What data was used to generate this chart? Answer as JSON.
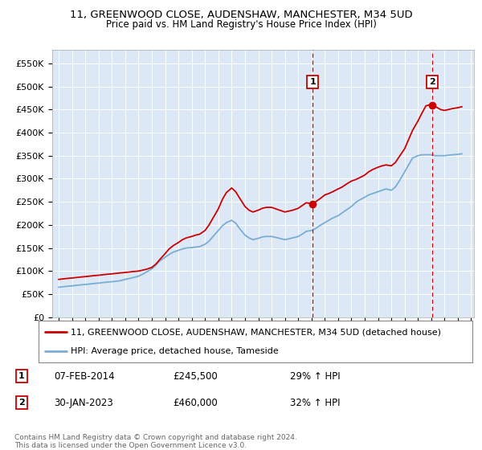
{
  "title": "11, GREENWOOD CLOSE, AUDENSHAW, MANCHESTER, M34 5UD",
  "subtitle": "Price paid vs. HM Land Registry's House Price Index (HPI)",
  "legend_label_red": "11, GREENWOOD CLOSE, AUDENSHAW, MANCHESTER, M34 5UD (detached house)",
  "legend_label_blue": "HPI: Average price, detached house, Tameside",
  "annotation1_date": "07-FEB-2014",
  "annotation1_price": "£245,500",
  "annotation1_hpi": "29% ↑ HPI",
  "annotation2_date": "30-JAN-2023",
  "annotation2_price": "£460,000",
  "annotation2_hpi": "32% ↑ HPI",
  "footer": "Contains HM Land Registry data © Crown copyright and database right 2024.\nThis data is licensed under the Open Government Licence v3.0.",
  "red_color": "#cc0000",
  "blue_color": "#7aadd4",
  "bg_color": "#ffffff",
  "plot_bg_color": "#dce8f5",
  "grid_color": "#ffffff",
  "vline_color": "#cc0000",
  "shade_color": "#dce8f5",
  "ylim": [
    0,
    580000
  ],
  "yticks": [
    0,
    50000,
    100000,
    150000,
    200000,
    250000,
    300000,
    350000,
    400000,
    450000,
    500000,
    550000
  ],
  "ytick_labels": [
    "£0",
    "£50K",
    "£100K",
    "£150K",
    "£200K",
    "£250K",
    "£300K",
    "£350K",
    "£400K",
    "£450K",
    "£500K",
    "£550K"
  ],
  "xlim_start": 1994.5,
  "xlim_end": 2026.2,
  "sale1_x": 2014.1,
  "sale1_y": 245500,
  "sale2_x": 2023.08,
  "sale2_y": 460000,
  "shade_start": 2014.1,
  "shade_end": 2026.2,
  "red_x": [
    1995.0,
    1995.3,
    1995.6,
    1996.0,
    1996.3,
    1996.6,
    1997.0,
    1997.3,
    1997.6,
    1998.0,
    1998.3,
    1998.6,
    1999.0,
    1999.3,
    1999.6,
    2000.0,
    2000.3,
    2000.6,
    2001.0,
    2001.3,
    2001.6,
    2002.0,
    2002.3,
    2002.6,
    2003.0,
    2003.3,
    2003.6,
    2004.0,
    2004.3,
    2004.6,
    2005.0,
    2005.3,
    2005.6,
    2006.0,
    2006.3,
    2006.6,
    2007.0,
    2007.3,
    2007.6,
    2008.0,
    2008.3,
    2008.6,
    2009.0,
    2009.3,
    2009.6,
    2010.0,
    2010.3,
    2010.6,
    2011.0,
    2011.3,
    2011.6,
    2012.0,
    2012.3,
    2012.6,
    2013.0,
    2013.3,
    2013.6,
    2014.0,
    2014.1,
    2014.4,
    2014.7,
    2015.0,
    2015.3,
    2015.6,
    2016.0,
    2016.3,
    2016.6,
    2017.0,
    2017.3,
    2017.6,
    2018.0,
    2018.3,
    2018.6,
    2019.0,
    2019.3,
    2019.6,
    2020.0,
    2020.3,
    2020.6,
    2021.0,
    2021.3,
    2021.6,
    2022.0,
    2022.3,
    2022.6,
    2023.0,
    2023.08,
    2023.4,
    2023.7,
    2024.0,
    2024.3,
    2024.6,
    2025.0,
    2025.3
  ],
  "red_y": [
    82000,
    83000,
    84000,
    85000,
    86000,
    87000,
    88000,
    89000,
    90000,
    91000,
    92000,
    93000,
    94000,
    95000,
    96000,
    97000,
    98000,
    99000,
    100000,
    102000,
    104000,
    108000,
    115000,
    125000,
    138000,
    148000,
    155000,
    162000,
    168000,
    172000,
    175000,
    178000,
    180000,
    188000,
    200000,
    215000,
    235000,
    255000,
    270000,
    280000,
    272000,
    258000,
    240000,
    232000,
    228000,
    232000,
    236000,
    238000,
    238000,
    235000,
    232000,
    228000,
    230000,
    232000,
    236000,
    242000,
    248000,
    246000,
    245500,
    252000,
    258000,
    265000,
    268000,
    272000,
    278000,
    282000,
    288000,
    295000,
    298000,
    302000,
    308000,
    315000,
    320000,
    325000,
    328000,
    330000,
    328000,
    335000,
    348000,
    365000,
    385000,
    405000,
    425000,
    442000,
    458000,
    461000,
    460000,
    455000,
    450000,
    448000,
    450000,
    452000,
    454000,
    456000
  ],
  "blue_x": [
    1995.0,
    1995.3,
    1995.6,
    1996.0,
    1996.3,
    1996.6,
    1997.0,
    1997.3,
    1997.6,
    1998.0,
    1998.3,
    1998.6,
    1999.0,
    1999.3,
    1999.6,
    2000.0,
    2000.3,
    2000.6,
    2001.0,
    2001.3,
    2001.6,
    2002.0,
    2002.3,
    2002.6,
    2003.0,
    2003.3,
    2003.6,
    2004.0,
    2004.3,
    2004.6,
    2005.0,
    2005.3,
    2005.6,
    2006.0,
    2006.3,
    2006.6,
    2007.0,
    2007.3,
    2007.6,
    2008.0,
    2008.3,
    2008.6,
    2009.0,
    2009.3,
    2009.6,
    2010.0,
    2010.3,
    2010.6,
    2011.0,
    2011.3,
    2011.6,
    2012.0,
    2012.3,
    2012.6,
    2013.0,
    2013.3,
    2013.6,
    2014.0,
    2014.3,
    2014.6,
    2015.0,
    2015.3,
    2015.6,
    2016.0,
    2016.3,
    2016.6,
    2017.0,
    2017.3,
    2017.6,
    2018.0,
    2018.3,
    2018.6,
    2019.0,
    2019.3,
    2019.6,
    2020.0,
    2020.3,
    2020.6,
    2021.0,
    2021.3,
    2021.6,
    2022.0,
    2022.3,
    2022.6,
    2023.0,
    2023.3,
    2023.6,
    2024.0,
    2024.3,
    2024.6,
    2025.0,
    2025.3
  ],
  "blue_y": [
    65000,
    66000,
    67000,
    68000,
    69000,
    70000,
    71000,
    72000,
    73000,
    74000,
    75000,
    76000,
    77000,
    78000,
    79000,
    82000,
    84000,
    86000,
    89000,
    93000,
    98000,
    105000,
    113000,
    122000,
    130000,
    136000,
    141000,
    145000,
    148000,
    150000,
    151000,
    152000,
    153000,
    158000,
    165000,
    175000,
    188000,
    198000,
    205000,
    210000,
    204000,
    192000,
    178000,
    172000,
    168000,
    171000,
    174000,
    175000,
    175000,
    173000,
    171000,
    168000,
    170000,
    172000,
    175000,
    180000,
    186000,
    188000,
    192000,
    198000,
    205000,
    210000,
    215000,
    220000,
    226000,
    232000,
    240000,
    248000,
    254000,
    260000,
    265000,
    268000,
    272000,
    275000,
    278000,
    275000,
    282000,
    295000,
    315000,
    330000,
    345000,
    350000,
    352000,
    352000,
    352000,
    350000,
    350000,
    350000,
    351000,
    352000,
    353000,
    354000
  ]
}
